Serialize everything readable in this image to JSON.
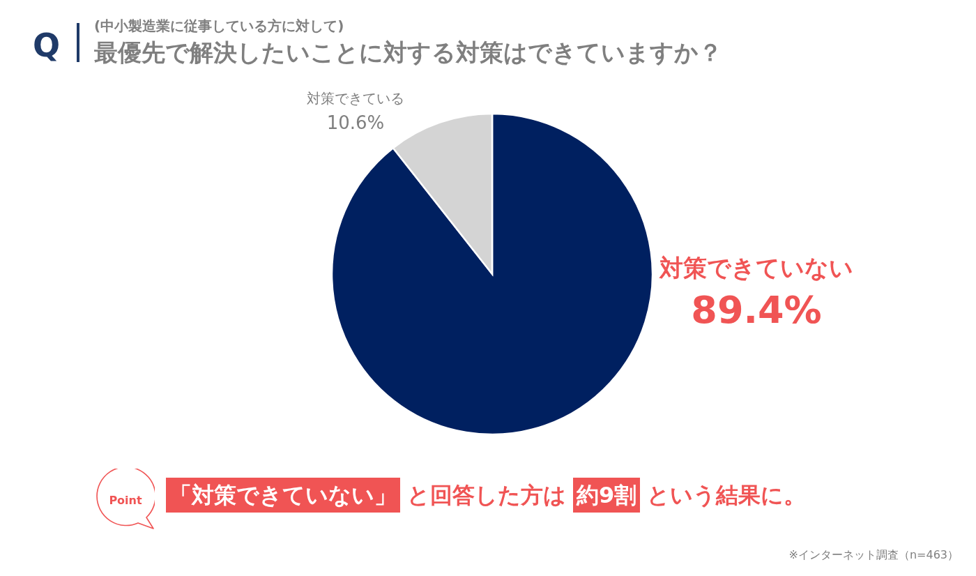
{
  "chart_data": {
    "type": "pie",
    "title": "最優先で解決したいことに対する対策はできていますか？",
    "subtitle": "(中小製造業に従事している方に対して)",
    "categories": [
      "対策できていない",
      "対策できている"
    ],
    "values": [
      89.4,
      10.6
    ],
    "value_labels": [
      "89.4%",
      "10.6%"
    ],
    "colors": [
      "#002060",
      "#d4d4d4"
    ],
    "annotations": [
      "Q",
      "Point",
      "「対策できていない」",
      "と回答した方は",
      "約9割",
      "という結果に。",
      "※インターネット調査（n=463）"
    ]
  }
}
